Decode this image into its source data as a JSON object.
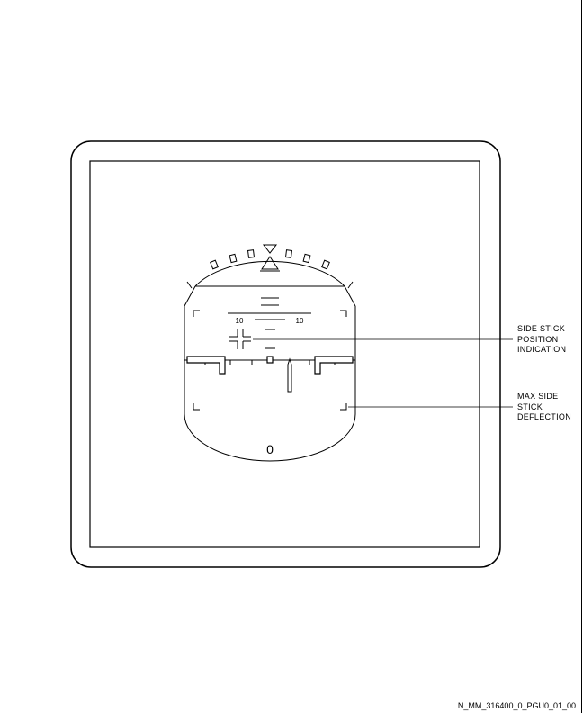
{
  "pitch_scale": {
    "left_label": "10",
    "right_label": "10"
  },
  "heading_label": "0",
  "callouts": {
    "side_stick": [
      "SIDE STICK",
      "POSITION",
      "INDICATION"
    ],
    "max_deflection": [
      "MAX SIDE",
      "STICK",
      "DEFLECTION"
    ]
  },
  "figure_id": "N_MM_316400_0_PGU0_01_00",
  "colors": {
    "line": "#000000",
    "background": "#ffffff"
  }
}
